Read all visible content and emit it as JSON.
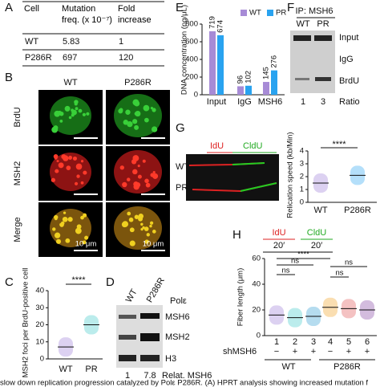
{
  "panel_a": {
    "label": "A",
    "table": {
      "header": [
        "Cell",
        "Mutation freq. (x 10⁻⁷)",
        "Fold increase"
      ],
      "rows": [
        [
          "WT",
          "5.83",
          "1"
        ],
        [
          "P286R",
          "697",
          "120"
        ]
      ]
    }
  },
  "panel_b": {
    "label": "B",
    "columns": [
      "WT",
      "P286R"
    ],
    "rows": [
      "BrdU",
      "MSH2",
      "Merge"
    ],
    "scale_bar": "10 μm"
  },
  "panel_c": {
    "label": "C",
    "ylabel": "MSH2 foci per BrdU-positive cell",
    "categories": [
      "WT",
      "PR"
    ],
    "means": [
      7,
      20
    ],
    "ylim": [
      0,
      40
    ],
    "yticks": [
      0,
      10,
      20,
      30,
      40
    ],
    "significance": "****"
  },
  "panel_d": {
    "label": "D",
    "columns": [
      "WT",
      "P286R"
    ],
    "protein": "Polε",
    "bands": [
      "MSH6",
      "MSH2",
      "H3"
    ],
    "ratios": [
      "1",
      "7.8"
    ],
    "ratio_label": "Relat. MSH6"
  },
  "panel_e": {
    "label": "E",
    "ylabel": "DNA concentration (ng/μL)",
    "categories": [
      "Input",
      "IgG",
      "MSH6"
    ],
    "series": [
      {
        "name": "WT",
        "color": "#a78bd6",
        "values": [
          719,
          96,
          145
        ]
      },
      {
        "name": "PR",
        "color": "#29a3f0",
        "values": [
          674,
          102,
          276
        ]
      }
    ],
    "ylim": [
      0,
      800
    ],
    "yticks": [
      0,
      200,
      400,
      600,
      800
    ]
  },
  "panel_f": {
    "label": "F",
    "title": "IP: MSH6",
    "columns": [
      "WT",
      "PR"
    ],
    "rows": [
      "Input",
      "IgG",
      "BrdU"
    ],
    "ratios": [
      "1",
      "3"
    ],
    "ratio_label": "Ratio"
  },
  "panel_g": {
    "label": "G",
    "pulses": [
      "IdU",
      "CldU"
    ],
    "rows": [
      "WT",
      "PR"
    ],
    "ylabel": "Relication speed (kb/Min)",
    "categories": [
      "WT",
      "P286R"
    ],
    "means": [
      1.5,
      2.1
    ],
    "ylim": [
      0,
      4
    ],
    "yticks": [
      0,
      1,
      2,
      3,
      4
    ],
    "significance": "****"
  },
  "panel_h": {
    "label": "H",
    "pulses": [
      "IdU",
      "CldU"
    ],
    "times": [
      "20′",
      "20′"
    ],
    "ylabel": "Fiber length (μm)",
    "categories": [
      "1",
      "2",
      "3",
      "4",
      "5",
      "6"
    ],
    "means": [
      16,
      14,
      15,
      22,
      21,
      20
    ],
    "ylim": [
      0,
      60
    ],
    "yticks": [
      0,
      20,
      40,
      60
    ],
    "treatment_label": "shMSH6",
    "treatment": [
      "−",
      "+",
      "+",
      "−",
      "+",
      "+"
    ],
    "groups": [
      "WT",
      "P286R"
    ],
    "significance": [
      "ns",
      "ns",
      "****",
      "ns",
      "ns"
    ]
  },
  "caption": "slow down replication progression catalyzed by Polε P286R. (A) HPRT analysis showing increased mutation f"
}
